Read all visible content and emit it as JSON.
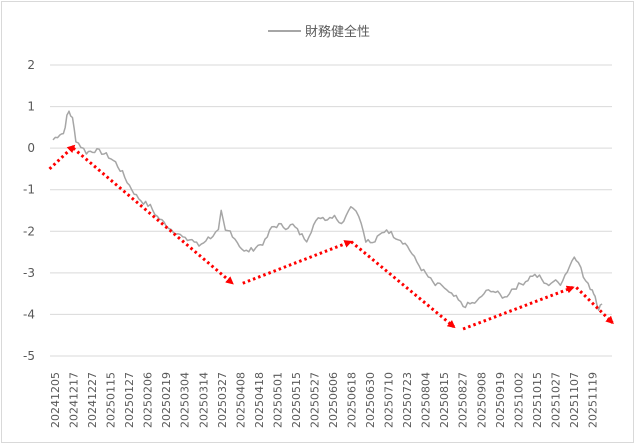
{
  "chart_data": {
    "type": "line",
    "title": "",
    "xlabel": "",
    "ylabel": "",
    "ylim": [
      -5,
      2
    ],
    "yticks": [
      2,
      1,
      0,
      -1,
      -2,
      -3,
      -4,
      -5
    ],
    "grid": true,
    "legend_position": "top",
    "x_tick_labels": [
      "20241205",
      "20241217",
      "20241227",
      "20250115",
      "20250127",
      "20250206",
      "20250219",
      "20250304",
      "20250314",
      "20250327",
      "20250408",
      "20250418",
      "20250501",
      "20250515",
      "20250527",
      "20250606",
      "20250618",
      "20250630",
      "20250710",
      "20250723",
      "20250804",
      "20250815",
      "20250827",
      "20250908",
      "20250919",
      "20251002",
      "20251015",
      "20251027",
      "20251107",
      "20251119"
    ],
    "series": [
      {
        "name": "財務健全性",
        "color": "#a6a6a6",
        "keypoints": [
          [
            0,
            0.2
          ],
          [
            1,
            0.35
          ],
          [
            1.5,
            0.35
          ],
          [
            2,
            0.75
          ],
          [
            2.3,
            0.9
          ],
          [
            2.8,
            0.7
          ],
          [
            3.3,
            0.2
          ],
          [
            4,
            0.05
          ],
          [
            4.8,
            -0.1
          ],
          [
            6,
            -0.05
          ],
          [
            7,
            -0.1
          ],
          [
            8,
            -0.2
          ],
          [
            9,
            -0.35
          ],
          [
            10,
            -0.6
          ],
          [
            11,
            -0.9
          ],
          [
            12,
            -1.15
          ],
          [
            13,
            -1.3
          ],
          [
            14,
            -1.4
          ],
          [
            15,
            -1.65
          ],
          [
            16,
            -1.8
          ],
          [
            17,
            -1.95
          ],
          [
            18,
            -2.05
          ],
          [
            19,
            -2.2
          ],
          [
            20,
            -2.2
          ],
          [
            21,
            -2.35
          ],
          [
            22,
            -2.2
          ],
          [
            23,
            -2.1
          ],
          [
            23.8,
            -2.0
          ],
          [
            24.2,
            -1.55
          ],
          [
            24.8,
            -2.0
          ],
          [
            25.5,
            -2.0
          ],
          [
            26.5,
            -2.25
          ],
          [
            27.5,
            -2.5
          ],
          [
            28.5,
            -2.45
          ],
          [
            29.5,
            -2.35
          ],
          [
            30.5,
            -2.25
          ],
          [
            31.5,
            -1.9
          ],
          [
            32.5,
            -1.85
          ],
          [
            33.5,
            -1.9
          ],
          [
            34.5,
            -1.85
          ],
          [
            35.5,
            -2.05
          ],
          [
            36.5,
            -2.2
          ],
          [
            37.5,
            -1.85
          ],
          [
            38.5,
            -1.65
          ],
          [
            39.5,
            -1.7
          ],
          [
            40.5,
            -1.6
          ],
          [
            41.5,
            -1.85
          ],
          [
            42.5,
            -1.45
          ],
          [
            43.2,
            -1.4
          ],
          [
            44,
            -1.6
          ],
          [
            45,
            -2.2
          ],
          [
            46,
            -2.3
          ],
          [
            47,
            -2.1
          ],
          [
            48,
            -1.95
          ],
          [
            49,
            -2.1
          ],
          [
            50,
            -2.2
          ],
          [
            51,
            -2.35
          ],
          [
            52,
            -2.65
          ],
          [
            53,
            -2.9
          ],
          [
            54,
            -3.1
          ],
          [
            55,
            -3.3
          ],
          [
            56,
            -3.3
          ],
          [
            57,
            -3.5
          ],
          [
            58,
            -3.6
          ],
          [
            59,
            -3.8
          ],
          [
            60,
            -3.75
          ],
          [
            61,
            -3.7
          ],
          [
            62,
            -3.5
          ],
          [
            63,
            -3.4
          ],
          [
            64,
            -3.5
          ],
          [
            65,
            -3.6
          ],
          [
            66,
            -3.4
          ],
          [
            67,
            -3.3
          ],
          [
            68,
            -3.2
          ],
          [
            69,
            -3.05
          ],
          [
            70,
            -3.1
          ],
          [
            71,
            -3.3
          ],
          [
            72,
            -3.2
          ],
          [
            73,
            -3.25
          ],
          [
            74,
            -2.95
          ],
          [
            75,
            -2.6
          ],
          [
            75.6,
            -2.7
          ],
          [
            76.3,
            -3.1
          ],
          [
            77,
            -3.3
          ],
          [
            77.6,
            -3.4
          ],
          [
            78,
            -3.55
          ],
          [
            78.5,
            -3.85
          ],
          [
            79,
            -3.75
          ]
        ]
      }
    ],
    "annotations": [
      {
        "type": "arrow",
        "color": "#ff0000",
        "style": "dotted",
        "from": [
          -0.5,
          -0.5
        ],
        "to": [
          3.0,
          0.05
        ]
      },
      {
        "type": "arrow",
        "color": "#ff0000",
        "style": "dotted",
        "from": [
          2.9,
          0.0
        ],
        "to": [
          25.8,
          -3.25
        ]
      },
      {
        "type": "arrow",
        "color": "#ff0000",
        "style": "dotted",
        "from": [
          27.3,
          -3.25
        ],
        "to": [
          42.8,
          -2.25
        ]
      },
      {
        "type": "arrow",
        "color": "#ff0000",
        "style": "dotted",
        "from": [
          42.9,
          -2.25
        ],
        "to": [
          57.7,
          -4.3
        ]
      },
      {
        "type": "arrow",
        "color": "#ff0000",
        "style": "dotted",
        "from": [
          59.0,
          -4.35
        ],
        "to": [
          74.8,
          -3.35
        ]
      },
      {
        "type": "arrow",
        "color": "#ff0000",
        "style": "dotted",
        "from": [
          75.3,
          -3.35
        ],
        "to": [
          80.5,
          -4.2
        ]
      }
    ]
  }
}
